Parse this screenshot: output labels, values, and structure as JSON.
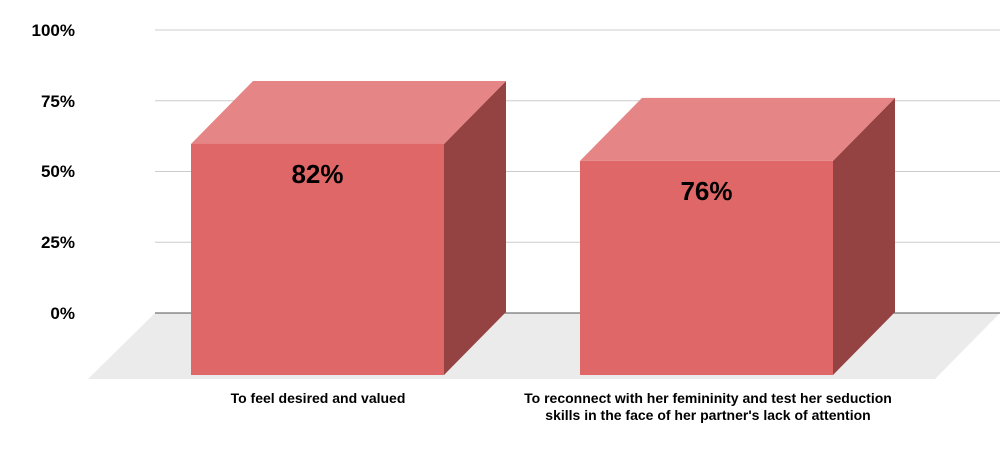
{
  "chart_data": {
    "type": "bar",
    "categories": [
      "To feel desired and valued",
      "To reconnect with her femininity and test her seduction skills in the face of her partner's lack of attention"
    ],
    "values": [
      82,
      76
    ],
    "data_labels": [
      "82%",
      "76%"
    ],
    "yticks": [
      "100%",
      "75%",
      "50%",
      "25%",
      "0%"
    ],
    "ylim": [
      0,
      100
    ],
    "grid": true,
    "three_d": true,
    "title": "",
    "xlabel": "",
    "ylabel": ""
  },
  "colors": {
    "bar_front": "#e06767",
    "bar_top": "#e68585",
    "bar_side": "#954242",
    "floor": "#ebebeb",
    "grid": "#cccccc",
    "baseline": "#555555"
  }
}
